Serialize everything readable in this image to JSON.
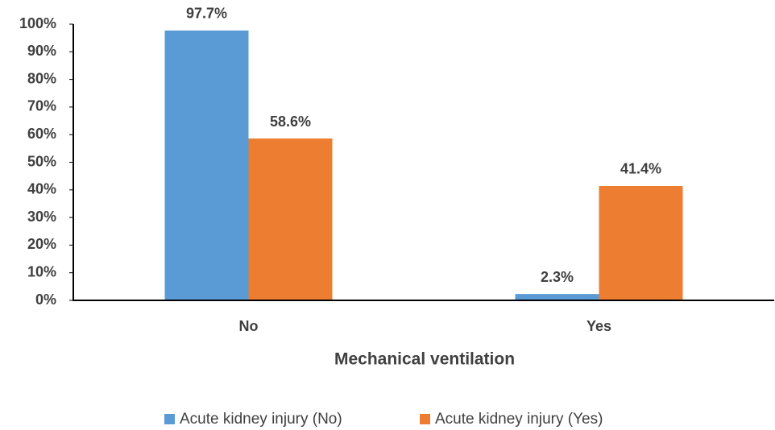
{
  "chart_data": {
    "type": "bar",
    "x_label": "Mechanical ventilation",
    "categories": [
      "No",
      "Yes"
    ],
    "series": [
      {
        "name": "Acute kidney injury (No)",
        "color": "#5b9bd5",
        "values": [
          97.7,
          2.3
        ],
        "value_labels": [
          "97.7%",
          "2.3%"
        ]
      },
      {
        "name": "Acute kidney injury (Yes)",
        "color": "#ed7d31",
        "values": [
          58.6,
          41.4
        ],
        "value_labels": [
          "58.6%",
          "41.4%"
        ]
      }
    ],
    "ylim": [
      0,
      100
    ],
    "yticks": [
      {
        "value": 0,
        "label": "0%"
      },
      {
        "value": 10,
        "label": "10%"
      },
      {
        "value": 20,
        "label": "20%"
      },
      {
        "value": 30,
        "label": "30%"
      },
      {
        "value": 40,
        "label": "40%"
      },
      {
        "value": 50,
        "label": "50%"
      },
      {
        "value": 60,
        "label": "60%"
      },
      {
        "value": 70,
        "label": "70%"
      },
      {
        "value": 80,
        "label": "80%"
      },
      {
        "value": 90,
        "label": "90%"
      },
      {
        "value": 100,
        "label": "100%"
      }
    ],
    "grid": false,
    "legend": "bottom"
  }
}
